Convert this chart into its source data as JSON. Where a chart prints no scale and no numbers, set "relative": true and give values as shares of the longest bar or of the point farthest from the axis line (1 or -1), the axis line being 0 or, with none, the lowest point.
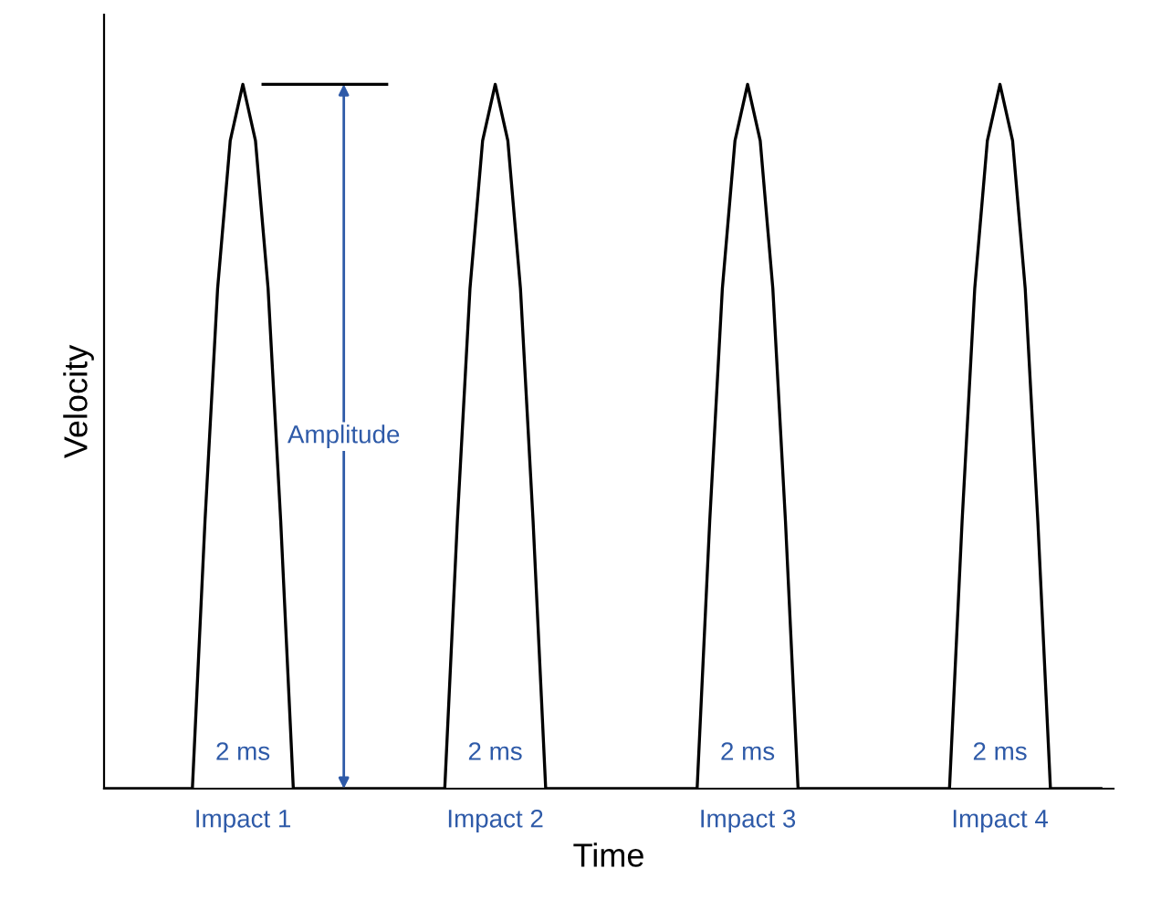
{
  "chart_data": {
    "type": "line",
    "relative": true,
    "xlabel": "Time",
    "ylabel": "Velocity",
    "categories": [
      null,
      null,
      null,
      null,
      null,
      null,
      null,
      null,
      null,
      null,
      null,
      "Impact 1",
      null,
      null,
      null,
      null,
      null,
      null,
      null,
      null,
      null,
      null,
      null,
      null,
      null,
      null,
      null,
      null,
      null,
      null,
      null,
      "Impact 2",
      null,
      null,
      null,
      null,
      null,
      null,
      null,
      null,
      null,
      null,
      null,
      null,
      null,
      null,
      null,
      null,
      null,
      null,
      null,
      "Impact 3",
      null,
      null,
      null,
      null,
      null,
      null,
      null,
      null,
      null,
      null,
      null,
      null,
      null,
      null,
      null,
      null,
      null,
      null,
      null,
      "Impact 4",
      null,
      null,
      null,
      null,
      null,
      null,
      null,
      null
    ],
    "series": [
      {
        "color": "#000000",
        "values": [
          0,
          0,
          0,
          0,
          0,
          0,
          0,
          0,
          0.38,
          0.71,
          0.92,
          1,
          0.92,
          0.71,
          0.38,
          0,
          0,
          0,
          0,
          0,
          0,
          0,
          0,
          0,
          0,
          0,
          0,
          0,
          0.38,
          0.71,
          0.92,
          1,
          0.92,
          0.71,
          0.38,
          0,
          0,
          0,
          0,
          0,
          0,
          0,
          0,
          0,
          0,
          0,
          0,
          0,
          0.38,
          0.71,
          0.92,
          1,
          0.92,
          0.71,
          0.38,
          0,
          0,
          0,
          0,
          0,
          0,
          0,
          0,
          0,
          0,
          0,
          0,
          0,
          0.38,
          0.71,
          0.92,
          1,
          0.92,
          0.71,
          0.38,
          0,
          0,
          0,
          0,
          0
        ]
      }
    ],
    "annotations": [
      "Amplitude",
      "2 ms",
      "2 ms",
      "2 ms",
      "2 ms"
    ],
    "legend": false,
    "grid": false,
    "marker": "none",
    "line_style": "solid"
  }
}
